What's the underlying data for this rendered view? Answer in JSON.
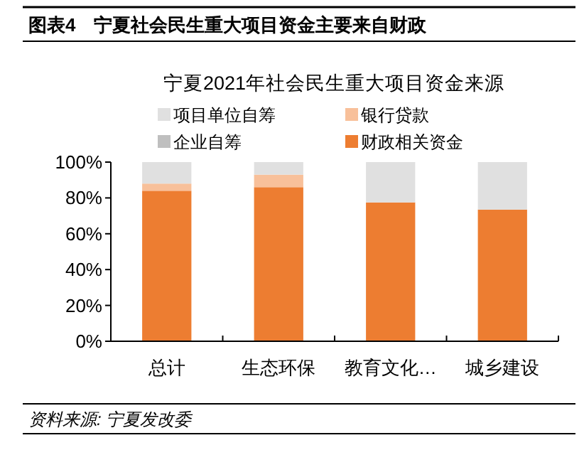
{
  "chart_data": {
    "type": "bar",
    "stacked": true,
    "title": "图表4　宁夏社会民生重大项目资金主要来自财政",
    "subtitle": "宁夏2021年社会民生重大项目资金来源",
    "categories": [
      "总计",
      "生态环保",
      "教育文化…",
      "城乡建设"
    ],
    "series": [
      {
        "name": "财政相关资金",
        "color": "#ed7d31",
        "values": [
          84,
          86,
          77.5,
          73.5
        ]
      },
      {
        "name": "企业自筹",
        "color": "#bfbfbf",
        "values": [
          null,
          0,
          0,
          0
        ]
      },
      {
        "name": "银行贷款",
        "color": "#f8c09a",
        "values": [
          4,
          7,
          0,
          0
        ]
      },
      {
        "name": "项目单位自筹",
        "color": "#e0e0e0",
        "values": [
          12,
          7,
          22.5,
          26.5
        ]
      }
    ],
    "ylim": [
      0,
      100
    ],
    "yticks": [
      {
        "value": 0,
        "label": "0%"
      },
      {
        "value": 20,
        "label": "20%"
      },
      {
        "value": 40,
        "label": "40%"
      },
      {
        "value": 60,
        "label": "60%"
      },
      {
        "value": 80,
        "label": "80%"
      },
      {
        "value": 100,
        "label": "100%"
      }
    ],
    "grid": false,
    "legend": "top",
    "annotations": [
      "资料来源: 宁夏发改委"
    ]
  }
}
